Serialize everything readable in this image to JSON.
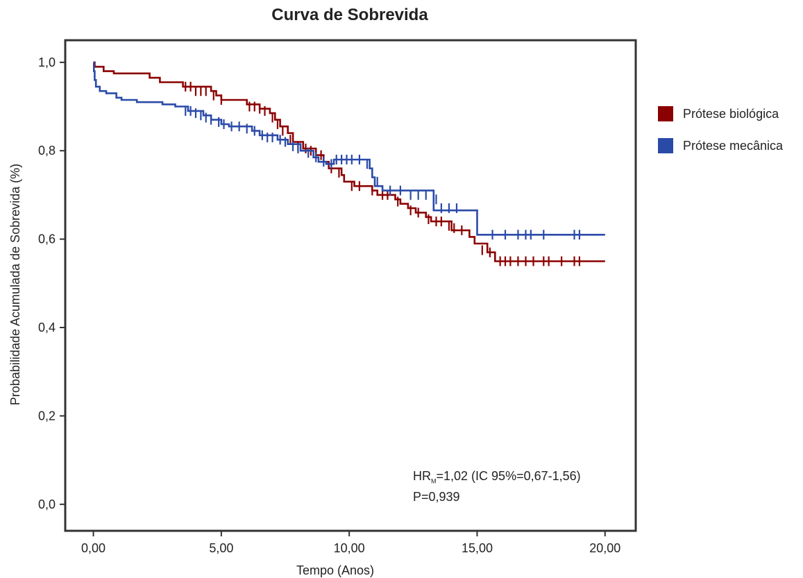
{
  "chart_data": {
    "type": "line",
    "title": "Curva de Sobrevida",
    "xlabel": "Tempo (Anos)",
    "ylabel": "Probabilidade Acumulada de Sobrevida (%)",
    "xlim": [
      -1.1,
      21.2
    ],
    "ylim": [
      -0.06,
      1.05
    ],
    "xticks": [
      0,
      5,
      10,
      15,
      20
    ],
    "xtick_labels": [
      "0,00",
      "5,00",
      "10,00",
      "15,00",
      "20,00"
    ],
    "yticks": [
      0.0,
      0.2,
      0.4,
      0.6,
      0.8,
      1.0
    ],
    "ytick_labels": [
      "0,0",
      "0,2",
      "0,4",
      "0,6",
      "0,8",
      "1,0"
    ],
    "grid": false,
    "legend_position": "right",
    "series": [
      {
        "name": "Prótese biológica",
        "color": "#8b0000",
        "steps": [
          [
            0,
            1.0
          ],
          [
            0.05,
            0.99
          ],
          [
            0.4,
            0.98
          ],
          [
            0.8,
            0.975
          ],
          [
            2.2,
            0.965
          ],
          [
            2.6,
            0.955
          ],
          [
            3.5,
            0.945
          ],
          [
            4.6,
            0.935
          ],
          [
            4.8,
            0.925
          ],
          [
            5.0,
            0.915
          ],
          [
            6.0,
            0.905
          ],
          [
            6.5,
            0.895
          ],
          [
            6.9,
            0.885
          ],
          [
            7.1,
            0.87
          ],
          [
            7.3,
            0.855
          ],
          [
            7.6,
            0.84
          ],
          [
            7.8,
            0.82
          ],
          [
            8.2,
            0.805
          ],
          [
            8.7,
            0.79
          ],
          [
            9.0,
            0.775
          ],
          [
            9.2,
            0.76
          ],
          [
            9.7,
            0.745
          ],
          [
            9.8,
            0.73
          ],
          [
            10.2,
            0.72
          ],
          [
            10.9,
            0.71
          ],
          [
            11.1,
            0.7
          ],
          [
            11.8,
            0.69
          ],
          [
            12.0,
            0.68
          ],
          [
            12.3,
            0.67
          ],
          [
            12.6,
            0.66
          ],
          [
            13.0,
            0.65
          ],
          [
            13.2,
            0.64
          ],
          [
            14.0,
            0.62
          ],
          [
            14.7,
            0.605
          ],
          [
            14.9,
            0.59
          ],
          [
            15.4,
            0.57
          ],
          [
            15.7,
            0.55
          ],
          [
            20.0,
            0.55
          ]
        ],
        "censors": [
          [
            3.6,
            0.945
          ],
          [
            3.8,
            0.945
          ],
          [
            4.0,
            0.935
          ],
          [
            4.2,
            0.935
          ],
          [
            4.4,
            0.935
          ],
          [
            4.7,
            0.925
          ],
          [
            5.0,
            0.915
          ],
          [
            6.1,
            0.9
          ],
          [
            6.3,
            0.9
          ],
          [
            6.5,
            0.895
          ],
          [
            6.7,
            0.89
          ],
          [
            7.0,
            0.875
          ],
          [
            7.2,
            0.86
          ],
          [
            7.4,
            0.845
          ],
          [
            7.7,
            0.825
          ],
          [
            8.0,
            0.81
          ],
          [
            8.3,
            0.805
          ],
          [
            8.5,
            0.8
          ],
          [
            8.9,
            0.79
          ],
          [
            9.3,
            0.76
          ],
          [
            9.6,
            0.75
          ],
          [
            10.1,
            0.72
          ],
          [
            10.4,
            0.72
          ],
          [
            10.9,
            0.71
          ],
          [
            11.3,
            0.7
          ],
          [
            11.5,
            0.7
          ],
          [
            11.9,
            0.685
          ],
          [
            12.4,
            0.665
          ],
          [
            12.7,
            0.66
          ],
          [
            13.1,
            0.645
          ],
          [
            13.4,
            0.64
          ],
          [
            13.6,
            0.64
          ],
          [
            13.9,
            0.63
          ],
          [
            14.1,
            0.625
          ],
          [
            14.4,
            0.62
          ],
          [
            15.2,
            0.575
          ],
          [
            15.5,
            0.57
          ],
          [
            15.9,
            0.55
          ],
          [
            16.1,
            0.55
          ],
          [
            16.3,
            0.55
          ],
          [
            16.6,
            0.55
          ],
          [
            16.9,
            0.55
          ],
          [
            17.2,
            0.55
          ],
          [
            17.6,
            0.55
          ],
          [
            17.8,
            0.55
          ],
          [
            18.3,
            0.55
          ],
          [
            18.8,
            0.55
          ],
          [
            19.0,
            0.55
          ]
        ]
      },
      {
        "name": "Prótese mecânica",
        "color": "#2a4aa8",
        "steps": [
          [
            0,
            1.0
          ],
          [
            0.02,
            0.98
          ],
          [
            0.05,
            0.96
          ],
          [
            0.1,
            0.945
          ],
          [
            0.25,
            0.935
          ],
          [
            0.5,
            0.93
          ],
          [
            0.9,
            0.92
          ],
          [
            1.1,
            0.915
          ],
          [
            1.7,
            0.91
          ],
          [
            2.7,
            0.905
          ],
          [
            3.2,
            0.9
          ],
          [
            3.7,
            0.89
          ],
          [
            4.3,
            0.88
          ],
          [
            4.6,
            0.87
          ],
          [
            5.0,
            0.86
          ],
          [
            5.3,
            0.855
          ],
          [
            6.2,
            0.845
          ],
          [
            6.5,
            0.835
          ],
          [
            7.2,
            0.825
          ],
          [
            7.6,
            0.815
          ],
          [
            8.1,
            0.8
          ],
          [
            8.6,
            0.785
          ],
          [
            8.8,
            0.775
          ],
          [
            9.1,
            0.77
          ],
          [
            9.4,
            0.78
          ],
          [
            10.8,
            0.76
          ],
          [
            10.9,
            0.74
          ],
          [
            11.0,
            0.72
          ],
          [
            11.3,
            0.71
          ],
          [
            13.3,
            0.69
          ],
          [
            13.3,
            0.665
          ],
          [
            15.0,
            0.665
          ],
          [
            15.0,
            0.61
          ],
          [
            20.0,
            0.61
          ]
        ],
        "censors": [
          [
            3.6,
            0.89
          ],
          [
            3.8,
            0.89
          ],
          [
            4.0,
            0.885
          ],
          [
            4.2,
            0.88
          ],
          [
            4.4,
            0.875
          ],
          [
            4.6,
            0.87
          ],
          [
            4.9,
            0.865
          ],
          [
            5.1,
            0.86
          ],
          [
            5.4,
            0.855
          ],
          [
            5.7,
            0.855
          ],
          [
            6.0,
            0.85
          ],
          [
            6.3,
            0.845
          ],
          [
            6.6,
            0.835
          ],
          [
            6.8,
            0.83
          ],
          [
            7.0,
            0.83
          ],
          [
            7.3,
            0.825
          ],
          [
            7.5,
            0.82
          ],
          [
            7.8,
            0.81
          ],
          [
            8.0,
            0.805
          ],
          [
            8.4,
            0.795
          ],
          [
            8.7,
            0.785
          ],
          [
            9.0,
            0.775
          ],
          [
            9.3,
            0.77
          ],
          [
            9.5,
            0.78
          ],
          [
            9.7,
            0.78
          ],
          [
            9.9,
            0.78
          ],
          [
            10.1,
            0.78
          ],
          [
            10.4,
            0.78
          ],
          [
            10.7,
            0.77
          ],
          [
            11.1,
            0.73
          ],
          [
            11.6,
            0.71
          ],
          [
            12.0,
            0.71
          ],
          [
            12.4,
            0.7
          ],
          [
            12.7,
            0.7
          ],
          [
            13.0,
            0.7
          ],
          [
            13.4,
            0.69
          ],
          [
            13.6,
            0.67
          ],
          [
            13.9,
            0.67
          ],
          [
            14.2,
            0.67
          ],
          [
            15.6,
            0.61
          ],
          [
            16.1,
            0.61
          ],
          [
            16.6,
            0.61
          ],
          [
            16.9,
            0.61
          ],
          [
            17.1,
            0.61
          ],
          [
            17.6,
            0.61
          ],
          [
            18.8,
            0.61
          ],
          [
            19.0,
            0.61
          ]
        ]
      }
    ],
    "annotation": {
      "hr_prefix": "HR",
      "hr_subscript": "M",
      "hr_text": "=1,02 (IC 95%=0,67-1,56)",
      "p_text": "P=0,939"
    }
  }
}
